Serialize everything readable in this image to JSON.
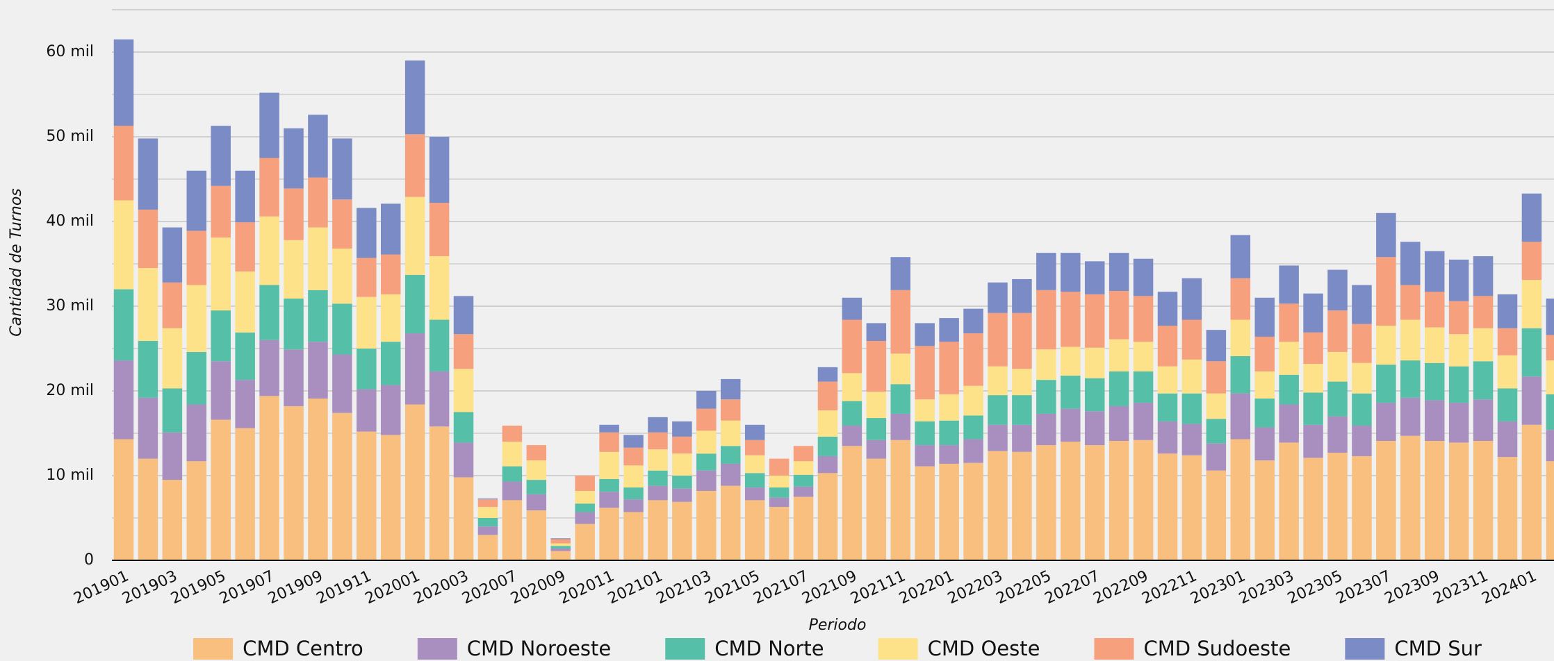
{
  "chart_data": {
    "type": "stacked_bar",
    "x_label": "Periodo",
    "y_label": "Cantidad de Turnos",
    "categories": [
      "201901",
      null,
      "201903",
      null,
      "201905",
      null,
      "201907",
      null,
      "201909",
      null,
      "201911",
      null,
      "202001",
      null,
      "202003",
      null,
      "202007",
      null,
      "202009",
      null,
      "202011",
      null,
      "202101",
      null,
      "202103",
      null,
      "202105",
      null,
      "202107",
      null,
      "202109",
      null,
      "202111",
      null,
      "202201",
      null,
      "202203",
      null,
      "202205",
      null,
      "202207",
      null,
      "202209",
      null,
      "202211",
      null,
      "202301",
      null,
      "202303",
      null,
      "202305",
      null,
      "202307",
      null,
      "202309",
      null,
      "202311",
      null,
      "202401",
      null
    ],
    "ylim": [
      0,
      65000
    ],
    "yticks": [
      0,
      {
        "value": 10000,
        "label": "10 mil"
      },
      {
        "value": 20000,
        "label": "20 mil"
      },
      {
        "value": 30000,
        "label": "30 mil"
      },
      {
        "value": 40000,
        "label": "40 mil"
      },
      {
        "value": 50000,
        "label": "50 mil"
      },
      {
        "value": 60000,
        "label": "60 mil"
      }
    ],
    "grid": true,
    "legend": "bottom",
    "series": [
      {
        "name": "CMD Centro",
        "color": "#f9bf7f",
        "values": [
          14300,
          12000,
          9500,
          11700,
          16600,
          15600,
          19400,
          18200,
          19100,
          17400,
          15200,
          14800,
          18400,
          15800,
          9800,
          3000,
          7100,
          5900,
          1100,
          4300,
          6200,
          5700,
          7100,
          6900,
          8200,
          8800,
          7100,
          6300,
          7500,
          10300,
          13500,
          12000,
          14200,
          11100,
          11400,
          11500,
          12900,
          12800,
          13600,
          14000,
          13600,
          14100,
          14200,
          12600,
          12400,
          10600,
          14300,
          11800,
          13900,
          12100,
          12700,
          12300,
          14100,
          14700,
          14100,
          13900,
          14100,
          12200,
          16000,
          11700
        ]
      },
      {
        "name": "CMD Noroeste",
        "color": "#a88fc0",
        "values": [
          9300,
          7200,
          5600,
          6700,
          6900,
          5700,
          6600,
          6700,
          6700,
          6900,
          5000,
          5900,
          8400,
          6500,
          4100,
          1000,
          2200,
          1900,
          300,
          1400,
          1900,
          1500,
          1700,
          1600,
          2400,
          2600,
          1500,
          1100,
          1200,
          2000,
          2400,
          2200,
          3100,
          2500,
          2200,
          2800,
          3100,
          3200,
          3700,
          3900,
          4000,
          4100,
          4400,
          3800,
          3700,
          3200,
          5400,
          3900,
          4500,
          3900,
          4300,
          3600,
          4500,
          4500,
          4800,
          4700,
          4900,
          4200,
          5700,
          3700
        ]
      },
      {
        "name": "CMD Norte",
        "color": "#55bfa7",
        "values": [
          8400,
          6700,
          5200,
          6200,
          6000,
          5600,
          6500,
          6000,
          6100,
          6000,
          4800,
          5100,
          6900,
          6100,
          3600,
          1000,
          1800,
          1700,
          300,
          1000,
          1500,
          1400,
          1800,
          1500,
          2000,
          2100,
          1700,
          1200,
          1400,
          2300,
          2900,
          2600,
          3500,
          2800,
          2900,
          2800,
          3500,
          3500,
          4000,
          3900,
          3900,
          4100,
          3700,
          3300,
          3600,
          2900,
          4400,
          3400,
          3500,
          3800,
          4100,
          3800,
          4500,
          4400,
          4400,
          4300,
          4500,
          3900,
          5700,
          4200
        ]
      },
      {
        "name": "CMD Oeste",
        "color": "#fde28a",
        "values": [
          10500,
          8600,
          7100,
          7900,
          8600,
          7200,
          8100,
          6900,
          7400,
          6500,
          6100,
          5600,
          9200,
          7500,
          5100,
          1300,
          2900,
          2300,
          300,
          1500,
          3200,
          2600,
          2500,
          2600,
          2700,
          3000,
          2100,
          1400,
          1600,
          3100,
          3300,
          3100,
          3600,
          2600,
          3100,
          3500,
          3400,
          3100,
          3600,
          3400,
          3600,
          3800,
          3500,
          3200,
          4000,
          3000,
          4300,
          3200,
          3900,
          3400,
          3500,
          3600,
          4600,
          4800,
          4200,
          3800,
          3900,
          3900,
          5700,
          4000
        ]
      },
      {
        "name": "CMD Sudoeste",
        "color": "#f6a07e",
        "values": [
          8800,
          6900,
          5400,
          6400,
          6100,
          5800,
          6900,
          6100,
          5900,
          5800,
          4600,
          4700,
          7400,
          6300,
          4100,
          900,
          1900,
          1800,
          500,
          1800,
          2300,
          2100,
          2000,
          2000,
          2600,
          2500,
          1800,
          2000,
          1800,
          3400,
          6300,
          6000,
          7500,
          6300,
          6200,
          6200,
          6300,
          6600,
          7000,
          6500,
          6300,
          5700,
          5400,
          4800,
          4700,
          3800,
          4900,
          4100,
          4500,
          3700,
          4900,
          4600,
          8100,
          4100,
          4200,
          3900,
          3800,
          3200,
          4500,
          3000
        ]
      },
      {
        "name": "CMD Sur",
        "color": "#7a8bc5",
        "values": [
          10200,
          8400,
          6500,
          7100,
          7100,
          6100,
          7700,
          7100,
          7400,
          7200,
          5900,
          6000,
          8700,
          7800,
          4500,
          100,
          0,
          0,
          100,
          0,
          900,
          1500,
          1800,
          1800,
          2100,
          2400,
          1800,
          0,
          0,
          1700,
          2600,
          2100,
          3900,
          2700,
          2800,
          2900,
          3600,
          4000,
          4400,
          4600,
          3900,
          4500,
          4400,
          4000,
          4900,
          3700,
          5100,
          4600,
          4500,
          4600,
          4800,
          4600,
          5200,
          5100,
          4800,
          4900,
          4700,
          4000,
          5700,
          4300
        ]
      }
    ]
  }
}
